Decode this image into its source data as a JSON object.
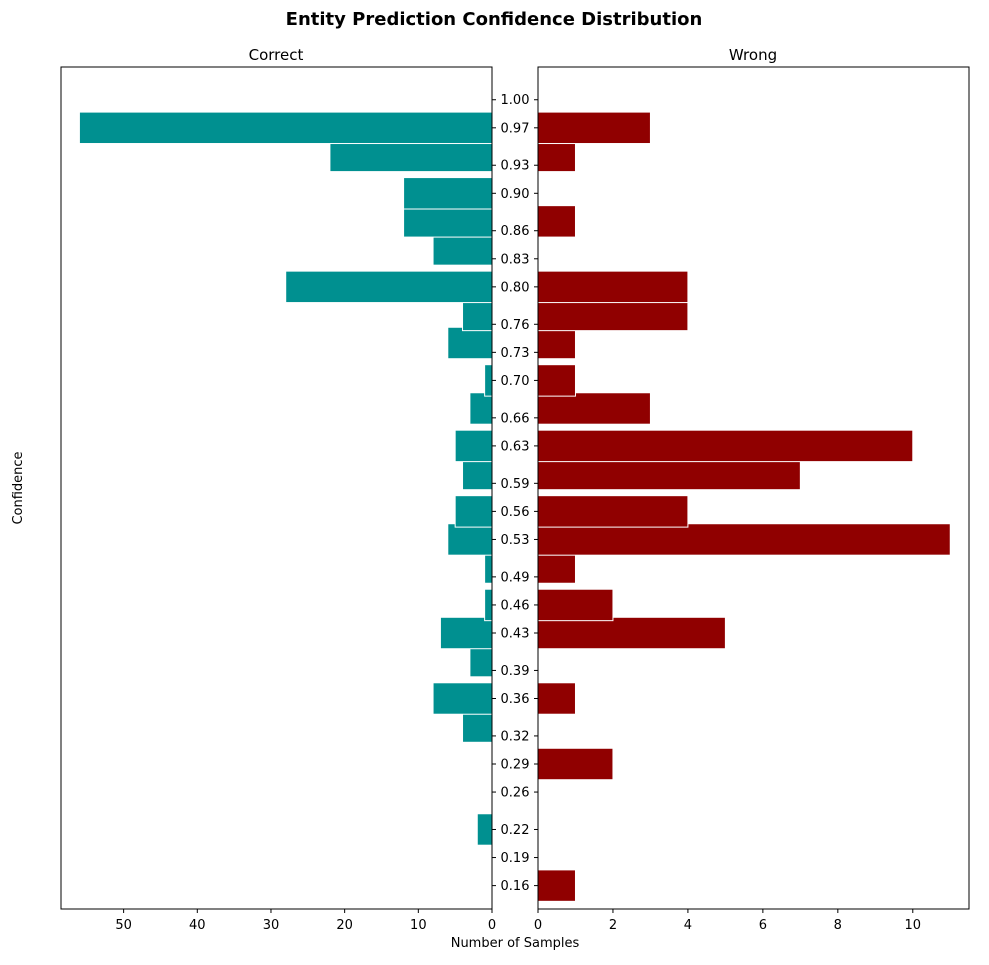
{
  "chart_data": {
    "type": "bar",
    "orientation": "horizontal-butterfly",
    "title": "Entity Prediction Confidence Distribution",
    "ylabel": "Confidence",
    "xlabel": "Number of Samples",
    "colors": {
      "correct": "#009090",
      "wrong": "#900000"
    },
    "y_ticks": [
      "1.00",
      "0.97",
      "0.93",
      "0.90",
      "0.86",
      "0.83",
      "0.80",
      "0.76",
      "0.73",
      "0.70",
      "0.66",
      "0.63",
      "0.59",
      "0.56",
      "0.53",
      "0.49",
      "0.46",
      "0.43",
      "0.39",
      "0.36",
      "0.32",
      "0.29",
      "0.26",
      "0.22",
      "0.19",
      "0.16"
    ],
    "y_tick_values": [
      1.0,
      0.97,
      0.93,
      0.9,
      0.86,
      0.83,
      0.8,
      0.76,
      0.73,
      0.7,
      0.66,
      0.63,
      0.59,
      0.56,
      0.53,
      0.49,
      0.46,
      0.43,
      0.39,
      0.36,
      0.32,
      0.29,
      0.26,
      0.22,
      0.19,
      0.16
    ],
    "bins": [
      {
        "center": 0.16,
        "correct": 0,
        "wrong": 1
      },
      {
        "center": 0.22,
        "correct": 2,
        "wrong": 0
      },
      {
        "center": 0.25,
        "correct": 0,
        "wrong": 0
      },
      {
        "center": 0.29,
        "correct": 0,
        "wrong": 2
      },
      {
        "center": 0.33,
        "correct": 4,
        "wrong": 0
      },
      {
        "center": 0.36,
        "correct": 8,
        "wrong": 1
      },
      {
        "center": 0.4,
        "correct": 3,
        "wrong": 0
      },
      {
        "center": 0.43,
        "correct": 7,
        "wrong": 5
      },
      {
        "center": 0.46,
        "correct": 1,
        "wrong": 2
      },
      {
        "center": 0.5,
        "correct": 1,
        "wrong": 1
      },
      {
        "center": 0.53,
        "correct": 6,
        "wrong": 11
      },
      {
        "center": 0.56,
        "correct": 5,
        "wrong": 4
      },
      {
        "center": 0.6,
        "correct": 4,
        "wrong": 7
      },
      {
        "center": 0.63,
        "correct": 5,
        "wrong": 10
      },
      {
        "center": 0.67,
        "correct": 3,
        "wrong": 3
      },
      {
        "center": 0.7,
        "correct": 1,
        "wrong": 1
      },
      {
        "center": 0.74,
        "correct": 6,
        "wrong": 1
      },
      {
        "center": 0.77,
        "correct": 4,
        "wrong": 4
      },
      {
        "center": 0.8,
        "correct": 28,
        "wrong": 4
      },
      {
        "center": 0.84,
        "correct": 8,
        "wrong": 0
      },
      {
        "center": 0.87,
        "correct": 12,
        "wrong": 1
      },
      {
        "center": 0.9,
        "correct": 12,
        "wrong": 0
      },
      {
        "center": 0.94,
        "correct": 22,
        "wrong": 1
      },
      {
        "center": 0.97,
        "correct": 56,
        "wrong": 3
      }
    ],
    "bin_height": 0.0336,
    "ylim": [
      0.135,
      1.035
    ],
    "panels": [
      {
        "key": "correct",
        "title": "Correct",
        "xlim": [
          58.5,
          0
        ],
        "ticks": [
          50,
          40,
          30,
          20,
          10,
          0
        ],
        "tick_labels": [
          "50",
          "40",
          "30",
          "20",
          "10",
          "0"
        ]
      },
      {
        "key": "wrong",
        "title": "Wrong",
        "xlim": [
          0,
          11.5
        ],
        "ticks": [
          0,
          2,
          4,
          6,
          8,
          10
        ],
        "tick_labels": [
          "0",
          "2",
          "4",
          "6",
          "8",
          "10"
        ]
      }
    ]
  }
}
